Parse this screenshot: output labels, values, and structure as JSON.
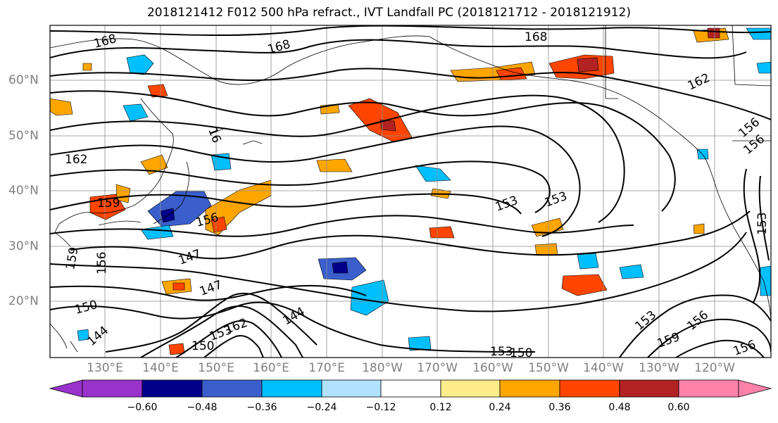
{
  "title": "2018121412 F012 500 hPa refract., IVT Landfall PC (2018121712 - 2018121912)",
  "lat_labels": [
    "60°N",
    "50°N",
    "40°N",
    "30°N",
    "20°N"
  ],
  "lon_labels": [
    "130°E",
    "140°E",
    "150°E",
    "160°E",
    "170°E",
    "180°W",
    "170°W",
    "160°W",
    "150°W",
    "140°W",
    "130°W",
    "120°W"
  ],
  "contour_labels": [
    "168",
    "168",
    "168",
    "162",
    "162",
    "159",
    "156",
    "156",
    "153",
    "153",
    "153",
    "156",
    "147",
    "147",
    "144",
    "144",
    "150",
    "150",
    "153",
    "159",
    "162",
    "156",
    "156",
    "159",
    "153",
    "153",
    "156",
    "16",
    "150"
  ],
  "colorbar": {
    "ticks": [
      "−0.60",
      "−0.48",
      "−0.36",
      "−0.24",
      "−0.12",
      "0.12",
      "0.24",
      "0.36",
      "0.48",
      "0.60"
    ],
    "colors": [
      "#9932cc",
      "#00008b",
      "#3a5fcd",
      "#00bfff",
      "#b0e2ff",
      "#ffffff",
      "#ffec8b",
      "#ffa500",
      "#ff4500",
      "#b22222",
      "#ff82ab"
    ]
  }
}
